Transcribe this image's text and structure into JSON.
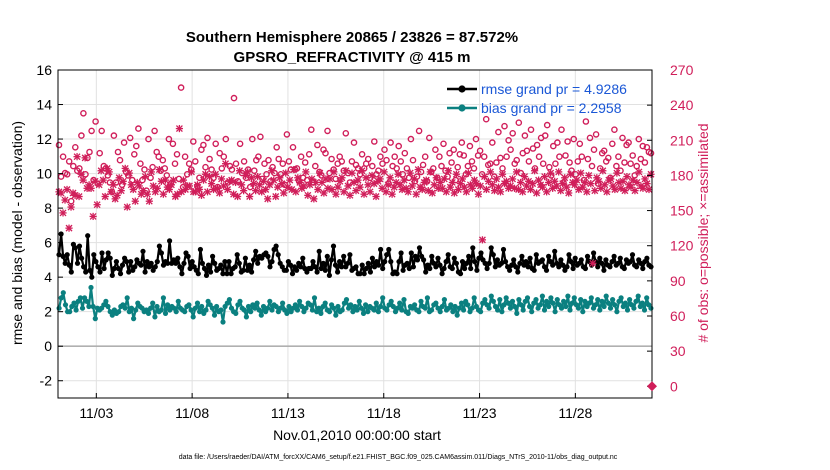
{
  "chart_data": {
    "type": "line",
    "title": "Southern Hemisphere 20865 / 23826 = 87.572%",
    "subtitle": "GPSRO_REFRACTIVITY @ 415 m",
    "xlabel": "Nov.01,2010 00:00:00 start",
    "ylabel": "rmse and bias (model - observation)",
    "y2label": "# of obs: o=possible; ×=assimilated",
    "footer": "data file: /Users/raeder/DAI/ATM_forcXX/CAM6_setup/f.e21.FHIST_BGC.f09_025.CAM6assim.011/Diags_NTrS_2010-11/obs_diag_output.nc",
    "x_start_day": 1,
    "x_end_day": 31,
    "x_ticks": [
      {
        "day": 3,
        "label": "11/03"
      },
      {
        "day": 8,
        "label": "11/08"
      },
      {
        "day": 13,
        "label": "11/13"
      },
      {
        "day": 18,
        "label": "11/18"
      },
      {
        "day": 23,
        "label": "11/23"
      },
      {
        "day": 28,
        "label": "11/28"
      }
    ],
    "ylim": [
      -3,
      16
    ],
    "yticks": [
      "-2",
      "0",
      "2",
      "4",
      "6",
      "8",
      "10",
      "12",
      "14",
      "16"
    ],
    "y2lim": [
      -10,
      270
    ],
    "y2ticks": [
      "0",
      "30",
      "60",
      "90",
      "120",
      "150",
      "180",
      "210",
      "240",
      "270"
    ],
    "grid": true,
    "legend_position": "top-right",
    "colors": {
      "rmse": "#000000",
      "bias": "#0b8080",
      "obs": "#d01e5a",
      "zero_line": "#b0b0b0"
    },
    "series": [
      {
        "name": "rmse grand pr = 4.9286",
        "axis": "left",
        "values": [
          5.3,
          6.5,
          5.2,
          4.8,
          5.3,
          4.7,
          4.3,
          5.9,
          5.7,
          4.8,
          5.8,
          5.1,
          4.6,
          4.3,
          6.4,
          4.4,
          4.0,
          5.3,
          4.9,
          4.6,
          4.3,
          5.4,
          4.5,
          5.0,
          5.4,
          5.1,
          4.1,
          4.5,
          4.9,
          4.5,
          4.2,
          4.7,
          5.1,
          4.9,
          4.3,
          4.9,
          4.4,
          4.6,
          5.0,
          4.8,
          4.7,
          5.5,
          4.3,
          4.9,
          4.6,
          4.8,
          4.4,
          4.6,
          4.9,
          5.8,
          5.4,
          4.7,
          4.9,
          4.8,
          6.1,
          4.8,
          5.0,
          4.8,
          5.1,
          4.6,
          4.2,
          4.8,
          5.4,
          5.2,
          4.5,
          4.9,
          4.6,
          4.4,
          4.2,
          5.6,
          4.8,
          4.5,
          4.1,
          4.7,
          4.3,
          5.2,
          4.8,
          4.4,
          4.5,
          4.7,
          4.2,
          4.9,
          4.2,
          4.9,
          4.2,
          4.5,
          4.6,
          5.3,
          4.8,
          4.3,
          4.4,
          5.1,
          4.4,
          4.7,
          4.3,
          5.0,
          5.5,
          4.8,
          5.2,
          5.1,
          5.3,
          5.4,
          5.2,
          4.6,
          4.9,
          5.6,
          5.8,
          5.3,
          4.8,
          4.6,
          4.4,
          4.4,
          4.9,
          4.7,
          4.2,
          4.6,
          4.4,
          4.8,
          4.6,
          5.1,
          4.5,
          4.3,
          4.5,
          4.5,
          4.9,
          4.6,
          4.3,
          5.5,
          4.5,
          4.8,
          4.4,
          5.2,
          4.1,
          5.0,
          5.8,
          4.7,
          4.3,
          4.9,
          4.6,
          5.2,
          4.6,
          4.8,
          5.3,
          4.4,
          4.5,
          4.6,
          4.2,
          4.2,
          4.7,
          4.2,
          4.5,
          4.8,
          4.3,
          5.1,
          4.6,
          4.9,
          4.7,
          5.6,
          4.5,
          4.9,
          5.3,
          5.6,
          4.9,
          4.2,
          4.3,
          4.2,
          4.9,
          5.4,
          4.4,
          4.7,
          4.8,
          4.5,
          5.4,
          4.6,
          5.2,
          5.0,
          5.7,
          5.2,
          5.0,
          4.3,
          4.7,
          4.5,
          5.2,
          4.8,
          4.6,
          5.1,
          4.7,
          4.2,
          4.5,
          4.9,
          5.3,
          4.6,
          4.5,
          5.1,
          4.8,
          4.3,
          4.2,
          4.9,
          4.5,
          4.8,
          5.2,
          4.5,
          5.7,
          4.9,
          4.4,
          5.1,
          5.4,
          5.0,
          4.8,
          4.5,
          4.8,
          5.7,
          5.3,
          4.6,
          5.0,
          4.7,
          4.8,
          5.6,
          4.9,
          4.6,
          4.4,
          4.7,
          5.0,
          4.6,
          4.3,
          4.8,
          5.2,
          4.7,
          4.9,
          4.6,
          5.1,
          4.5,
          4.4,
          5.3,
          4.8,
          4.9,
          5.0,
          4.6,
          4.4,
          5.2,
          4.9,
          4.7,
          5.5,
          4.8,
          4.6,
          5.0,
          4.7,
          4.4,
          4.6,
          5.3,
          4.9,
          4.5,
          5.1,
          4.7,
          4.8,
          5.0,
          4.6,
          4.5,
          5.2,
          4.9,
          4.7,
          5.4,
          4.9,
          4.6,
          5.1,
          4.8,
          4.4,
          5.0,
          4.7,
          4.6,
          4.9,
          5.2,
          4.7,
          4.8,
          5.1,
          4.6,
          4.5,
          5.0,
          4.8,
          4.9,
          5.3,
          4.7,
          4.6,
          5.0,
          4.8,
          4.5,
          4.9,
          5.1,
          4.7,
          4.6
        ]
      },
      {
        "name": "bias grand pr = 2.2958",
        "axis": "left",
        "values": [
          2.2,
          2.8,
          3.1,
          2.4,
          2.0,
          2.0,
          2.3,
          2.5,
          2.1,
          2.6,
          2.8,
          2.2,
          2.8,
          2.6,
          2.3,
          3.4,
          2.3,
          1.6,
          2.2,
          2.1,
          2.2,
          2.4,
          2.6,
          2.3,
          2.0,
          1.8,
          2.1,
          1.9,
          2.0,
          2.3,
          2.4,
          2.2,
          2.8,
          2.0,
          2.2,
          1.6,
          2.1,
          2.5,
          2.3,
          2.2,
          2.0,
          2.1,
          1.9,
          2.2,
          2.5,
          1.7,
          2.3,
          2.0,
          2.1,
          2.8,
          1.9,
          2.4,
          2.1,
          2.3,
          2.2,
          2.0,
          2.6,
          2.2,
          2.1,
          2.0,
          2.3,
          2.4,
          2.1,
          1.7,
          2.2,
          2.5,
          2.0,
          2.3,
          1.9,
          2.1,
          2.6,
          2.4,
          2.2,
          1.8,
          2.3,
          2.0,
          2.1,
          1.4,
          2.3,
          2.5,
          2.7,
          2.2,
          2.0,
          1.9,
          2.4,
          2.6,
          2.2,
          2.1,
          1.7,
          2.3,
          2.0,
          2.4,
          2.2,
          2.5,
          2.1,
          1.8,
          2.3,
          2.0,
          2.2,
          2.6,
          2.1,
          2.4,
          2.3,
          2.0,
          2.2,
          2.5,
          2.1,
          1.9,
          2.3,
          2.0,
          2.2,
          2.4,
          2.1,
          2.6,
          2.3,
          2.0,
          2.2,
          2.5,
          2.4,
          2.1,
          2.8,
          2.0,
          2.2,
          1.9,
          2.3,
          2.5,
          2.1,
          2.0,
          2.4,
          2.2,
          1.8,
          2.3,
          2.0,
          2.1,
          2.5,
          2.7,
          2.2,
          2.4,
          2.0,
          2.3,
          2.1,
          2.6,
          2.2,
          1.9,
          2.4,
          2.0,
          2.3,
          2.2,
          2.1,
          2.5,
          2.0,
          2.3,
          2.8,
          2.2,
          2.1,
          2.4,
          2.6,
          2.3,
          2.0,
          2.2,
          2.5,
          2.1,
          2.7,
          2.0,
          1.9,
          2.3,
          2.2,
          2.4,
          2.1,
          2.0,
          2.6,
          2.3,
          2.2,
          2.8,
          2.0,
          2.1,
          2.4,
          2.5,
          2.2,
          2.0,
          2.3,
          2.7,
          2.1,
          2.2,
          2.4,
          2.0,
          2.3,
          1.8,
          2.2,
          2.5,
          2.1,
          2.6,
          2.4,
          2.0,
          2.2,
          2.8,
          2.3,
          2.1,
          2.0,
          2.5,
          2.7,
          2.4,
          2.2,
          2.9,
          2.6,
          2.3,
          2.1,
          2.7,
          2.0,
          2.4,
          2.8,
          2.5,
          2.2,
          2.6,
          2.3,
          1.9,
          2.7,
          2.4,
          2.1,
          2.6,
          2.8,
          2.3,
          2.0,
          2.5,
          2.7,
          2.2,
          2.4,
          2.9,
          2.1,
          2.6,
          2.3,
          2.8,
          2.5,
          2.0,
          2.7,
          2.4,
          2.2,
          2.6,
          2.3,
          2.9,
          2.1,
          2.5,
          2.8,
          2.4,
          2.2,
          2.7,
          2.0,
          2.6,
          2.3,
          2.5,
          2.8,
          2.2,
          2.4,
          2.7,
          2.1,
          2.6,
          2.3,
          2.9,
          2.5,
          2.2,
          2.7,
          2.4,
          2.0,
          2.6,
          2.8,
          2.3,
          2.5,
          2.1,
          2.7,
          2.4,
          2.2,
          2.6,
          2.9,
          2.3,
          2.5,
          2.1,
          2.8,
          2.4,
          2.2
        ]
      },
      {
        "name": "possible",
        "axis": "right",
        "marker": "o",
        "values": [
          206,
          179,
          196,
          182,
          181,
          192,
          158,
          188,
          204,
          184,
          186,
          214,
          233,
          181,
          195,
          200,
          218,
          176,
          226,
          173,
          199,
          218,
          188,
          186,
          180,
          174,
          166,
          214,
          174,
          200,
          193,
          172,
          208,
          183,
          180,
          212,
          176,
          198,
          205,
          220,
          190,
          176,
          185,
          167,
          211,
          178,
          187,
          218,
          200,
          196,
          184,
          193,
          186,
          180,
          211,
          173,
          207,
          190,
          198,
          177,
          255,
          170,
          196,
          181,
          190,
          185,
          209,
          192,
          171,
          178,
          202,
          206,
          187,
          212,
          194,
          185,
          178,
          207,
          170,
          199,
          186,
          196,
          211,
          174,
          188,
          185,
          246,
          190,
          175,
          207,
          182,
          192,
          178,
          185,
          170,
          211,
          184,
          193,
          196,
          213,
          177,
          190,
          181,
          193,
          175,
          187,
          182,
          204,
          194,
          181,
          190,
          172,
          215,
          192,
          185,
          204,
          185,
          186,
          175,
          196,
          178,
          191,
          176,
          198,
          219,
          174,
          188,
          206,
          183,
          180,
          202,
          199,
          218,
          182,
          194,
          185,
          177,
          190,
          196,
          192,
          184,
          216,
          182,
          174,
          192,
          208,
          189,
          186,
          181,
          198,
          186,
          190,
          194,
          178,
          188,
          209,
          181,
          184,
          196,
          190,
          202,
          193,
          173,
          208,
          188,
          196,
          186,
          205,
          192,
          181,
          199,
          186,
          178,
          211,
          193,
          175,
          179,
          218,
          183,
          189,
          196,
          175,
          212,
          183,
          186,
          202,
          178,
          196,
          188,
          207,
          184,
          179,
          199,
          191,
          202,
          176,
          187,
          198,
          208,
          197,
          181,
          188,
          205,
          192,
          186,
          211,
          197,
          201,
          181,
          196,
          228,
          189,
          190,
          208,
          179,
          191,
          217,
          195,
          186,
          222,
          196,
          210,
          202,
          216,
          190,
          193,
          225,
          182,
          199,
          214,
          201,
          192,
          219,
          203,
          186,
          206,
          196,
          212,
          190,
          214,
          223,
          187,
          180,
          205,
          190,
          208,
          196,
          219,
          174,
          197,
          209,
          191,
          184,
          211,
          181,
          192,
          207,
          196,
          176,
          226,
          194,
          212,
          188,
          202,
          215,
          173,
          186,
          199,
          201,
          192,
          195,
          178,
          207,
          219,
          188,
          196,
          184,
          212,
          191,
          206,
          208,
          190,
          197,
          180,
          188,
          211,
          194,
          205,
          191,
          204,
          200,
          199
        ]
      },
      {
        "name": "assimilated",
        "axis": "right",
        "marker": "x",
        "values": [
          166,
          165,
          148,
          159,
          168,
          135,
          153,
          165,
          163,
          196,
          162,
          181,
          176,
          195,
          169,
          172,
          169,
          145,
          175,
          155,
          172,
          184,
          176,
          162,
          186,
          183,
          166,
          172,
          160,
          163,
          178,
          167,
          175,
          186,
          153,
          182,
          172,
          168,
          158,
          174,
          171,
          164,
          167,
          179,
          164,
          158,
          183,
          171,
          166,
          169,
          185,
          175,
          164,
          176,
          170,
          168,
          172,
          176,
          162,
          164,
          220,
          166,
          176,
          168,
          171,
          171,
          183,
          166,
          166,
          172,
          168,
          163,
          176,
          181,
          166,
          179,
          173,
          168,
          181,
          169,
          165,
          177,
          171,
          190,
          168,
          175,
          176,
          164,
          174,
          162,
          184,
          172,
          167,
          180,
          183,
          162,
          178,
          173,
          167,
          179,
          172,
          166,
          175,
          168,
          160,
          172,
          184,
          176,
          162,
          170,
          178,
          173,
          165,
          182,
          170,
          176,
          168,
          185,
          166,
          178,
          174,
          169,
          171,
          183,
          163,
          172,
          177,
          160,
          174,
          168,
          182,
          174,
          165,
          177,
          169,
          177,
          168,
          183,
          164,
          170,
          175,
          178,
          166,
          184,
          171,
          163,
          182,
          174,
          167,
          176,
          170,
          184,
          164,
          178,
          172,
          166,
          180,
          173,
          162,
          175,
          177,
          169,
          183,
          166,
          172,
          178,
          164,
          170,
          174,
          181,
          172,
          168,
          176,
          169,
          166,
          182,
          171,
          177,
          164,
          185,
          170,
          168,
          174,
          176,
          167,
          183,
          165,
          172,
          178,
          169,
          174,
          169,
          177,
          166,
          184,
          170,
          174,
          165,
          181,
          168,
          173,
          177,
          170,
          166,
          182,
          172,
          169,
          176,
          173,
          164,
          171,
          125,
          179,
          168,
          175,
          183,
          172,
          167,
          177,
          170,
          166,
          181,
          173,
          175,
          169,
          171,
          177,
          169,
          183,
          168,
          174,
          166,
          179,
          171,
          175,
          168,
          173,
          184,
          165,
          176,
          172,
          170,
          179,
          166,
          174,
          182,
          169,
          175,
          171,
          183,
          167,
          173,
          178,
          170,
          165,
          181,
          174,
          172,
          176,
          168,
          182,
          170,
          174,
          166,
          180,
          173,
          105,
          167,
          178,
          175,
          169,
          184,
          172,
          166,
          176,
          177,
          171,
          168,
          182,
          174,
          169,
          175,
          167,
          179,
          172,
          170,
          176,
          167,
          174,
          183,
          171,
          169,
          177,
          173,
          168,
          181
        ]
      }
    ],
    "annotations": [
      {
        "label": "0",
        "axis": "right",
        "value": 0,
        "marker": "filled-diamond"
      }
    ]
  }
}
